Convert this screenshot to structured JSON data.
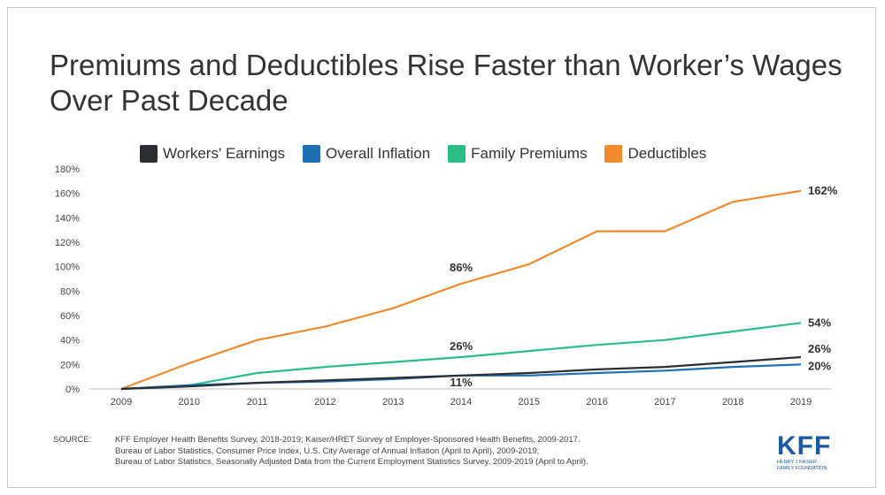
{
  "title": "Premiums and Deductibles Rise Faster than Worker’s Wages Over Past Decade",
  "chart_data": {
    "type": "line",
    "x": [
      "2009",
      "2010",
      "2011",
      "2012",
      "2013",
      "2014",
      "2015",
      "2016",
      "2017",
      "2018",
      "2019"
    ],
    "y_ticks": [
      "0%",
      "20%",
      "40%",
      "60%",
      "80%",
      "100%",
      "120%",
      "140%",
      "160%",
      "180%"
    ],
    "ylim": [
      0,
      180
    ],
    "grid": false,
    "legend_position": "top",
    "series": [
      {
        "name": "Workers' Earnings",
        "color": "#2b2f33",
        "values": [
          0,
          2,
          5,
          7,
          9,
          11,
          13,
          16,
          18,
          22,
          26
        ]
      },
      {
        "name": "Overall Inflation",
        "color": "#1f6fb6",
        "values": [
          0,
          3,
          5,
          6,
          8,
          11,
          11,
          13,
          15,
          18,
          20
        ]
      },
      {
        "name": "Family Premiums",
        "color": "#2bbd86",
        "values": [
          0,
          3,
          13,
          18,
          22,
          26,
          31,
          36,
          40,
          47,
          54
        ]
      },
      {
        "name": "Deductibles",
        "color": "#f08a2c",
        "values": [
          0,
          21,
          40,
          51,
          66,
          86,
          102,
          129,
          129,
          153,
          162
        ]
      }
    ],
    "annotations": [
      {
        "text": "86%",
        "series": 3,
        "index": 5
      },
      {
        "text": "26%",
        "series": 2,
        "index": 5
      },
      {
        "text": "11%",
        "series": 1,
        "index": 5
      },
      {
        "text": "162%",
        "series": 3,
        "index": 10
      },
      {
        "text": "54%",
        "series": 2,
        "index": 10
      },
      {
        "text": "26%",
        "series": 0,
        "index": 10
      },
      {
        "text": "20%",
        "series": 1,
        "index": 10
      }
    ]
  },
  "source": {
    "label": "SOURCE:",
    "lines": [
      "KFF Employer Health Benefits Survey, 2018-2019; Kaiser/HRET Survey of Employer-Sponsored Health Benefits, 2009-2017.",
      "Bureau of Labor Statistics, Consumer Price Index, U.S. City Average of Annual Inflation (April to April), 2009-2019;",
      "Bureau of Labor Statistics, Seasonally Adjusted Data from the Current Employment Statistics Survey, 2009-2019 (April to April)."
    ]
  },
  "logo": {
    "main": "KFF",
    "sub1": "HENRY J KAISER",
    "sub2": "FAMILY FOUNDATION"
  }
}
